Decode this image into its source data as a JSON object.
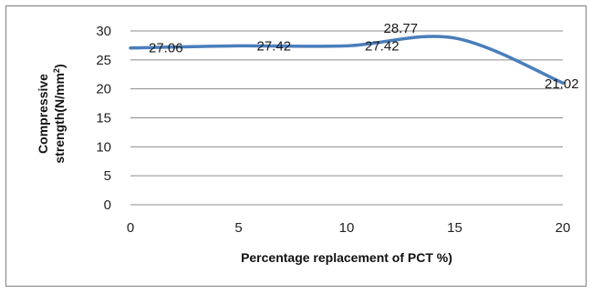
{
  "chart_data": {
    "type": "line",
    "xlabel": "Percentage replacement of PCT %)",
    "ylabel_line1": "Compressive",
    "ylabel_line2": "strength(N/mm",
    "ylabel_sup": "2",
    "ylabel_close": ")",
    "xlim": [
      0,
      20
    ],
    "ylim": [
      0,
      30
    ],
    "x_ticks": [
      "0",
      "5",
      "10",
      "15",
      "20"
    ],
    "y_ticks": [
      "0",
      "5",
      "10",
      "15",
      "20",
      "25",
      "30"
    ],
    "grid": true,
    "smoothed": true,
    "line_color": "#4a7ebb",
    "series": [
      {
        "x": [
          0,
          5,
          10,
          15,
          20
        ],
        "values": [
          27.06,
          27.42,
          27.42,
          28.77,
          21.02
        ],
        "labels": [
          "27.06",
          "27.42",
          "27.42",
          "28.77",
          "21.02"
        ]
      }
    ]
  }
}
